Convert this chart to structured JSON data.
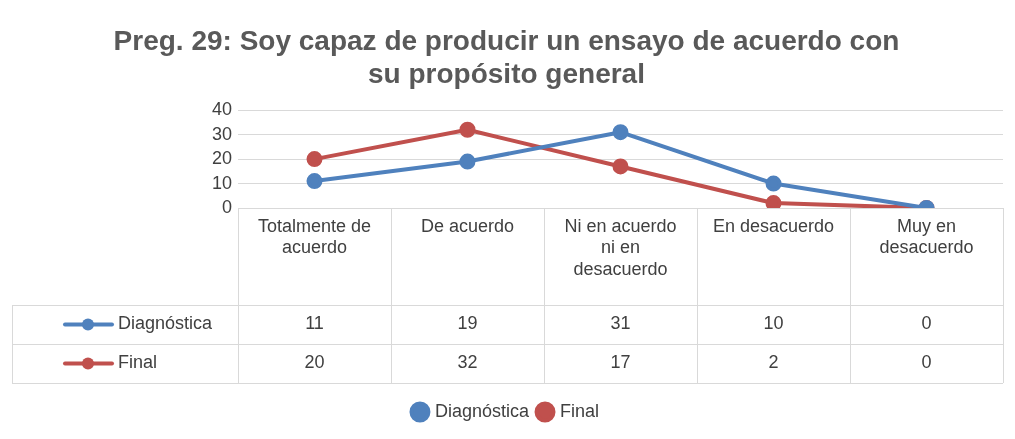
{
  "chart_data": {
    "type": "line",
    "title": "Preg. 29: Soy capaz de producir un ensayo de acuerdo con su propósito general",
    "categories": [
      "Totalmente de acuerdo",
      "De acuerdo",
      "Ni en acuerdo ni en desacuerdo",
      "En desacuerdo",
      "Muy en desacuerdo"
    ],
    "series": [
      {
        "name": "Diagnóstica",
        "color": "#4f81bd",
        "values": [
          11,
          19,
          31,
          10,
          0
        ]
      },
      {
        "name": "Final",
        "color": "#c0504d",
        "values": [
          20,
          32,
          17,
          2,
          0
        ]
      }
    ],
    "ylim": [
      0,
      40
    ],
    "yticks": [
      0,
      10,
      20,
      30,
      40
    ],
    "grid": "y",
    "legend": "bottom",
    "marker": "circle",
    "data_labels": true
  }
}
